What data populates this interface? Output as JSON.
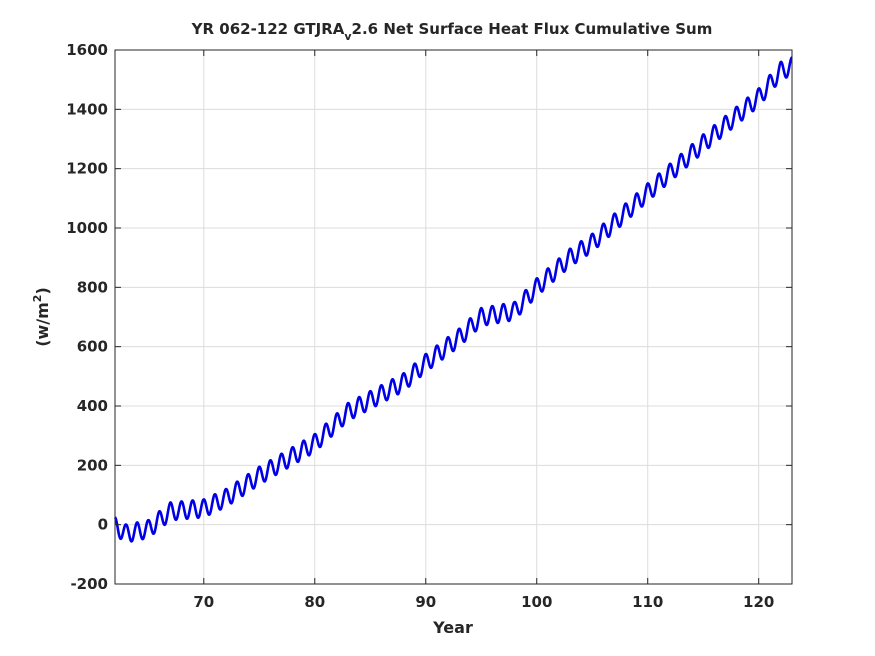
{
  "chart_data": {
    "type": "line",
    "title": {
      "prefix": "YR 062-122 GTJRA",
      "subscript": "v",
      "suffix": "2.6 Net Surface Heat Flux  Cumulative Sum"
    },
    "xlabel": "Year",
    "ylabel": {
      "prefix": "(w/m",
      "superscript": "2",
      "suffix": ")"
    },
    "xlim": [
      62,
      123
    ],
    "ylim": [
      -200,
      1600
    ],
    "xticks": [
      70,
      80,
      90,
      100,
      110,
      120
    ],
    "yticks": [
      -200,
      0,
      200,
      400,
      600,
      800,
      1000,
      1200,
      1400,
      1600
    ],
    "grid": true,
    "line_color": "#0000e6",
    "series": [
      {
        "seasonal_amplitude": 30,
        "seasonal_period_years": 1,
        "trend_points": [
          {
            "x": 62.0,
            "y": -5
          },
          {
            "x": 63.0,
            "y": -30
          },
          {
            "x": 65.0,
            "y": -15
          },
          {
            "x": 67.0,
            "y": 45
          },
          {
            "x": 70.0,
            "y": 55
          },
          {
            "x": 72.0,
            "y": 90
          },
          {
            "x": 75.0,
            "y": 165
          },
          {
            "x": 80.0,
            "y": 275
          },
          {
            "x": 83.0,
            "y": 380
          },
          {
            "x": 85.0,
            "y": 420
          },
          {
            "x": 88.0,
            "y": 480
          },
          {
            "x": 90.0,
            "y": 545
          },
          {
            "x": 93.0,
            "y": 630
          },
          {
            "x": 95.0,
            "y": 700
          },
          {
            "x": 98.0,
            "y": 720
          },
          {
            "x": 100.0,
            "y": 800
          },
          {
            "x": 103.0,
            "y": 900
          },
          {
            "x": 105.0,
            "y": 950
          },
          {
            "x": 110.0,
            "y": 1120
          },
          {
            "x": 115.0,
            "y": 1285
          },
          {
            "x": 120.0,
            "y": 1440
          },
          {
            "x": 122.0,
            "y": 1530
          },
          {
            "x": 123.0,
            "y": 1545
          }
        ]
      }
    ]
  }
}
